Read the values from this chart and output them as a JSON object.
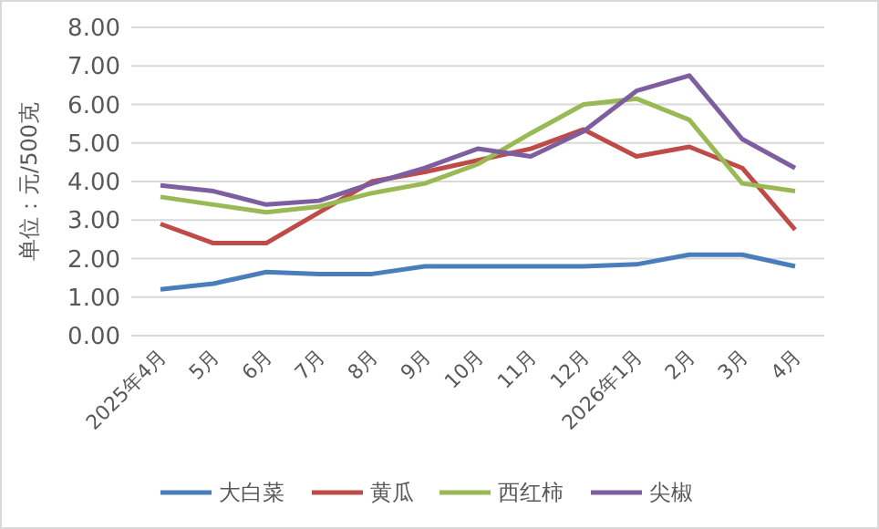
{
  "chart_data": {
    "type": "line",
    "ylabel": "单位：元/500克",
    "categories": [
      "2025年4月",
      "5月",
      "6月",
      "7月",
      "8月",
      "9月",
      "10月",
      "11月",
      "12月",
      "2026年1月",
      "2月",
      "3月",
      "4月"
    ],
    "series": [
      {
        "name": "大白菜",
        "color": "#4a7ebb",
        "values": [
          1.2,
          1.35,
          1.65,
          1.6,
          1.6,
          1.8,
          1.8,
          1.8,
          1.8,
          1.85,
          2.1,
          2.1,
          1.8
        ]
      },
      {
        "name": "黄瓜",
        "color": "#be4b48",
        "values": [
          2.9,
          2.4,
          2.4,
          3.2,
          4.0,
          4.25,
          4.55,
          4.85,
          5.35,
          4.65,
          4.9,
          4.35,
          2.75
        ]
      },
      {
        "name": "西红柿",
        "color": "#98b954",
        "values": [
          3.6,
          3.4,
          3.2,
          3.35,
          3.7,
          3.95,
          4.45,
          5.25,
          6.0,
          6.15,
          5.6,
          3.95,
          3.75
        ]
      },
      {
        "name": "尖椒",
        "color": "#7d5fa0",
        "values": [
          3.9,
          3.75,
          3.4,
          3.5,
          3.95,
          4.35,
          4.85,
          4.65,
          5.3,
          6.35,
          6.75,
          5.1,
          4.35
        ]
      }
    ],
    "ylim": [
      0,
      8
    ],
    "yticks": [
      {
        "value": 0,
        "label": "0.00"
      },
      {
        "value": 1,
        "label": "1.00"
      },
      {
        "value": 2,
        "label": "2.00"
      },
      {
        "value": 3,
        "label": "3.00"
      },
      {
        "value": 4,
        "label": "4.00"
      },
      {
        "value": 5,
        "label": "5.00"
      },
      {
        "value": 6,
        "label": "6.00"
      },
      {
        "value": 7,
        "label": "7.00"
      },
      {
        "value": 8,
        "label": "8.00"
      }
    ],
    "grid": "y",
    "legend": "bottom",
    "line_style": "solid",
    "marker": "none"
  }
}
